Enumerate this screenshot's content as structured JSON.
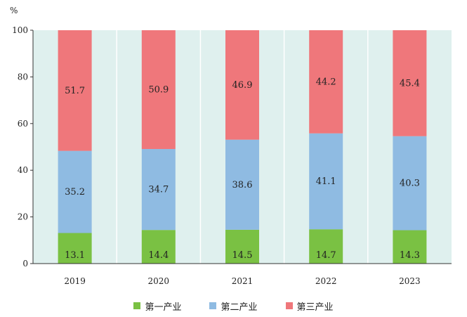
{
  "chart_data": {
    "type": "bar",
    "stacked": true,
    "unit_label": "%",
    "categories": [
      "2019",
      "2020",
      "2021",
      "2022",
      "2023"
    ],
    "ylim": [
      0,
      100
    ],
    "yticks": [
      0,
      20,
      40,
      60,
      80,
      100
    ],
    "grid": false,
    "legend_position": "bottom",
    "series": [
      {
        "name": "第一产业",
        "color": "#7ac143",
        "values": [
          13.1,
          14.4,
          14.5,
          14.7,
          14.3
        ]
      },
      {
        "name": "第二产业",
        "color": "#8fbbe2",
        "values": [
          35.2,
          34.7,
          38.6,
          41.1,
          40.3
        ]
      },
      {
        "name": "第三产业",
        "color": "#ef777b",
        "values": [
          51.7,
          50.9,
          46.9,
          44.2,
          45.4
        ]
      }
    ]
  },
  "colors": {
    "plot_background": "#dff0ee"
  }
}
